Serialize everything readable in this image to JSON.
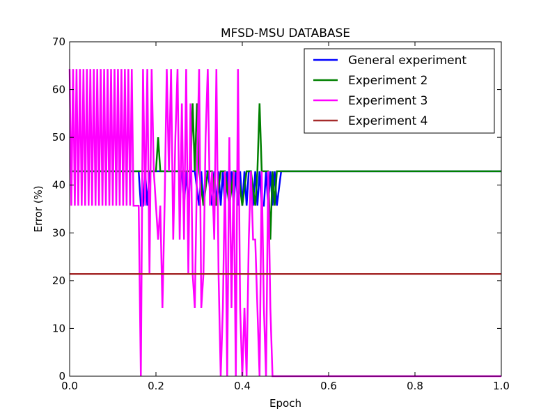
{
  "chart_data": {
    "type": "line",
    "title": "MFSD-MSU DATABASE",
    "xlabel": "Epoch",
    "ylabel": "Error (%)",
    "xlim": [
      0.0,
      1.0
    ],
    "ylim": [
      0,
      70
    ],
    "xticks": [
      "0.0",
      "0.2",
      "0.4",
      "0.6",
      "0.8",
      "1.0"
    ],
    "yticks": [
      "0",
      "10",
      "20",
      "30",
      "40",
      "50",
      "60",
      "70"
    ],
    "grid": false,
    "legend_position": "top-right",
    "series": [
      {
        "name": "General experiment",
        "color": "#0000ff",
        "x": [
          0.0,
          0.16,
          0.165,
          0.17,
          0.175,
          0.18,
          0.185,
          0.19,
          0.2,
          0.21,
          0.22,
          0.23,
          0.24,
          0.25,
          0.26,
          0.265,
          0.27,
          0.275,
          0.28,
          0.285,
          0.29,
          0.3,
          0.305,
          0.31,
          0.315,
          0.32,
          0.33,
          0.335,
          0.34,
          0.345,
          0.35,
          0.355,
          0.36,
          0.365,
          0.37,
          0.375,
          0.38,
          0.385,
          0.39,
          0.395,
          0.4,
          0.405,
          0.41,
          0.415,
          0.42,
          0.425,
          0.43,
          0.435,
          0.44,
          0.445,
          0.45,
          0.455,
          0.46,
          0.465,
          0.47,
          0.475,
          0.48,
          0.49,
          1.0
        ],
        "y": [
          42.9,
          42.9,
          35.7,
          35.7,
          42.9,
          35.7,
          42.9,
          42.9,
          42.9,
          42.9,
          42.9,
          42.9,
          42.9,
          42.9,
          42.9,
          35.7,
          42.9,
          35.7,
          42.9,
          42.9,
          42.9,
          35.7,
          42.9,
          35.7,
          42.9,
          42.9,
          35.7,
          42.9,
          35.7,
          42.9,
          35.7,
          42.9,
          35.7,
          42.9,
          35.7,
          42.9,
          35.7,
          42.9,
          35.7,
          42.9,
          35.7,
          42.9,
          35.7,
          42.9,
          42.9,
          35.7,
          42.9,
          35.7,
          42.9,
          35.7,
          35.7,
          42.9,
          35.7,
          42.9,
          35.7,
          42.9,
          35.7,
          42.9,
          42.9
        ]
      },
      {
        "name": "Experiment 2",
        "color": "#008000",
        "x": [
          0.0,
          0.2,
          0.205,
          0.21,
          0.28,
          0.285,
          0.29,
          0.295,
          0.3,
          0.31,
          0.32,
          0.33,
          0.34,
          0.35,
          0.36,
          0.37,
          0.38,
          0.39,
          0.4,
          0.41,
          0.42,
          0.43,
          0.435,
          0.44,
          0.445,
          0.45,
          0.46,
          0.465,
          0.47,
          0.475,
          0.48,
          1.0
        ],
        "y": [
          42.9,
          42.9,
          50.0,
          42.9,
          42.9,
          57.1,
          42.9,
          57.1,
          42.9,
          35.7,
          42.9,
          42.9,
          35.7,
          42.9,
          42.9,
          35.7,
          42.9,
          42.9,
          35.7,
          42.9,
          42.9,
          35.7,
          42.9,
          57.1,
          42.9,
          42.9,
          42.9,
          28.6,
          42.9,
          35.7,
          42.9,
          42.9
        ]
      },
      {
        "name": "Experiment 3",
        "color": "#ff00ff",
        "x": [
          0.0,
          0.004,
          0.008,
          0.012,
          0.016,
          0.02,
          0.024,
          0.028,
          0.032,
          0.036,
          0.04,
          0.044,
          0.048,
          0.052,
          0.056,
          0.06,
          0.064,
          0.068,
          0.072,
          0.076,
          0.08,
          0.084,
          0.088,
          0.092,
          0.096,
          0.1,
          0.104,
          0.108,
          0.112,
          0.116,
          0.12,
          0.124,
          0.128,
          0.132,
          0.136,
          0.14,
          0.144,
          0.148,
          0.152,
          0.156,
          0.16,
          0.165,
          0.17,
          0.175,
          0.18,
          0.185,
          0.19,
          0.195,
          0.2,
          0.205,
          0.21,
          0.215,
          0.22,
          0.225,
          0.23,
          0.235,
          0.24,
          0.245,
          0.25,
          0.255,
          0.26,
          0.265,
          0.27,
          0.275,
          0.28,
          0.285,
          0.29,
          0.295,
          0.3,
          0.305,
          0.31,
          0.315,
          0.32,
          0.325,
          0.33,
          0.335,
          0.34,
          0.345,
          0.35,
          0.355,
          0.36,
          0.365,
          0.37,
          0.375,
          0.38,
          0.385,
          0.39,
          0.395,
          0.4,
          0.405,
          0.41,
          0.415,
          0.42,
          0.425,
          0.43,
          0.435,
          0.44,
          0.445,
          0.45,
          0.455,
          0.46,
          0.465,
          0.47,
          0.475,
          1.0
        ],
        "y": [
          64.3,
          35.7,
          64.3,
          35.7,
          64.3,
          35.7,
          64.3,
          35.7,
          64.3,
          35.7,
          64.3,
          35.7,
          64.3,
          35.7,
          64.3,
          35.7,
          64.3,
          35.7,
          64.3,
          35.7,
          64.3,
          35.7,
          64.3,
          35.7,
          64.3,
          35.7,
          64.3,
          35.7,
          64.3,
          35.7,
          64.3,
          35.7,
          64.3,
          35.7,
          64.3,
          35.7,
          64.3,
          35.7,
          35.7,
          35.7,
          35.7,
          0.0,
          64.3,
          35.7,
          64.3,
          21.4,
          64.3,
          42.9,
          35.7,
          28.6,
          35.7,
          14.3,
          35.7,
          64.3,
          42.9,
          64.3,
          28.6,
          50.0,
          64.3,
          28.6,
          57.1,
          28.6,
          64.3,
          21.4,
          57.1,
          21.4,
          14.3,
          42.9,
          64.3,
          14.3,
          21.4,
          50.0,
          64.3,
          35.7,
          42.9,
          28.6,
          64.3,
          21.4,
          0.0,
          14.3,
          42.9,
          0.0,
          50.0,
          14.3,
          42.9,
          0.0,
          64.3,
          14.3,
          0.0,
          14.3,
          0.0,
          28.6,
          42.9,
          28.6,
          28.6,
          14.3,
          0.0,
          42.9,
          14.3,
          0.0,
          42.9,
          14.3,
          0.0,
          0.0,
          0.0
        ]
      },
      {
        "name": "Experiment 4",
        "color": "#a52a2a",
        "x": [
          0.0,
          1.0
        ],
        "y": [
          21.4,
          21.4
        ]
      }
    ]
  }
}
